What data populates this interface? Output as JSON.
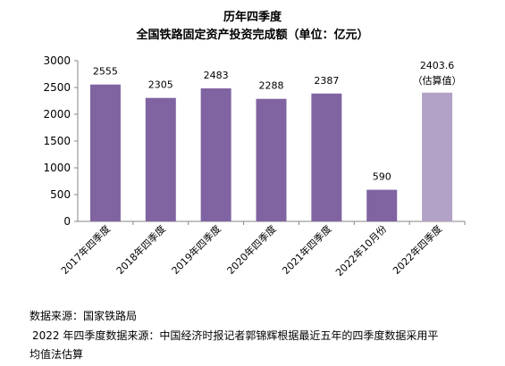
{
  "chart_data": {
    "type": "bar",
    "title": "历年四季度",
    "subtitle": "全国铁路固定资产投资完成额（单位：亿元）",
    "categories": [
      "2017年四季度",
      "2018年四季度",
      "2019年四季度",
      "2020年四季度",
      "2021年四季度",
      "2022年10月份",
      "2022年四季度"
    ],
    "values": [
      2555,
      2305,
      2483,
      2288,
      2387,
      590,
      2403.6
    ],
    "value_labels": [
      "2555",
      "2305",
      "2483",
      "2288",
      "2387",
      "590",
      "2403.6"
    ],
    "estimate_note": "（估算值）",
    "ylim": [
      0,
      3000
    ],
    "yticks": [
      0,
      500,
      1000,
      1500,
      2000,
      2500,
      3000
    ],
    "bar_colors": [
      "#8064a2",
      "#8064a2",
      "#8064a2",
      "#8064a2",
      "#8064a2",
      "#8064a2",
      "#b3a2c7"
    ],
    "grid": false,
    "xlabel": "",
    "ylabel": ""
  },
  "sources": {
    "line1": "数据来源：国家铁路局",
    "line2": "2022 年四季度数据来源：中国经济时报记者郭锦辉根据最近五年的四季度数据采用平",
    "line3": "均值法估算"
  }
}
